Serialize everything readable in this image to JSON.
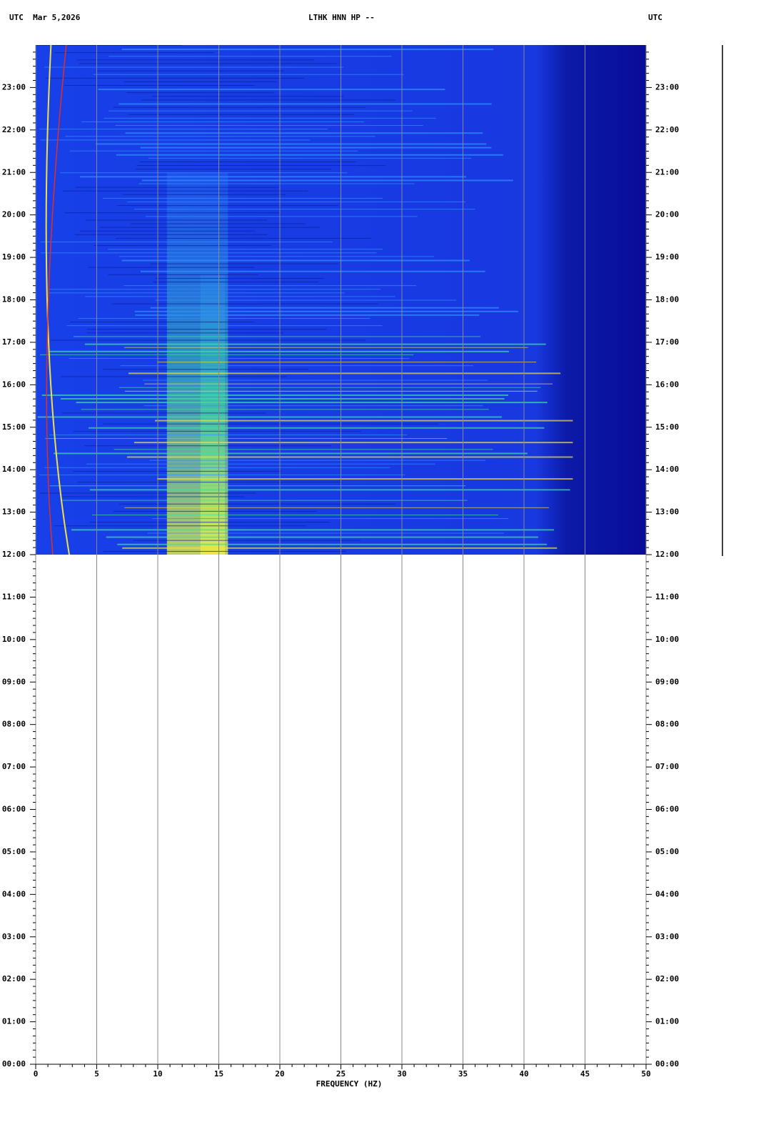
{
  "chart_data": {
    "type": "spectrogram",
    "title": "LTHK HNN HP --",
    "left_header": "UTC  Mar 5,2026",
    "right_header": "UTC",
    "x_label": "FREQUENCY (HZ)",
    "xlim": [
      0,
      50
    ],
    "xticks": [
      0,
      5,
      10,
      15,
      20,
      25,
      30,
      35,
      40,
      45,
      50
    ],
    "ylim": [
      0,
      24
    ],
    "yticks": [
      {
        "value": 0,
        "label": "00:00"
      },
      {
        "value": 1,
        "label": "01:00"
      },
      {
        "value": 2,
        "label": "02:00"
      },
      {
        "value": 3,
        "label": "03:00"
      },
      {
        "value": 4,
        "label": "04:00"
      },
      {
        "value": 5,
        "label": "05:00"
      },
      {
        "value": 6,
        "label": "06:00"
      },
      {
        "value": 7,
        "label": "07:00"
      },
      {
        "value": 8,
        "label": "08:00"
      },
      {
        "value": 9,
        "label": "09:00"
      },
      {
        "value": 10,
        "label": "10:00"
      },
      {
        "value": 11,
        "label": "11:00"
      },
      {
        "value": 12,
        "label": "12:00"
      },
      {
        "value": 13,
        "label": "13:00"
      },
      {
        "value": 14,
        "label": "14:00"
      },
      {
        "value": 15,
        "label": "15:00"
      },
      {
        "value": 16,
        "label": "16:00"
      },
      {
        "value": 17,
        "label": "17:00"
      },
      {
        "value": 18,
        "label": "18:00"
      },
      {
        "value": 19,
        "label": "19:00"
      },
      {
        "value": 20,
        "label": "20:00"
      },
      {
        "value": 21,
        "label": "21:00"
      },
      {
        "value": 22,
        "label": "22:00"
      },
      {
        "value": 23,
        "label": "23:00"
      }
    ],
    "data_time_range": [
      12,
      24
    ],
    "grid": true,
    "grid_color": "#888888"
  }
}
